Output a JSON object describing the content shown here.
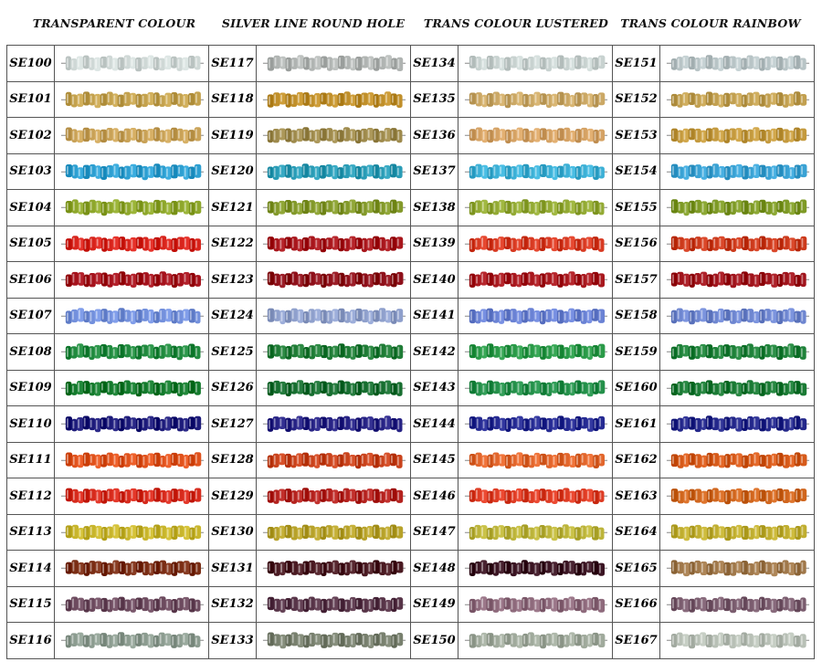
{
  "columns": [
    {
      "title": "TRANSPARENT COLOUR",
      "items": [
        {
          "code": "SE100",
          "color": "#cfd8d6"
        },
        {
          "code": "SE101",
          "color": "#c4a24e"
        },
        {
          "code": "SE102",
          "color": "#c9a257"
        },
        {
          "code": "SE103",
          "color": "#2d9fd1"
        },
        {
          "code": "SE104",
          "color": "#8ea72b"
        },
        {
          "code": "SE105",
          "color": "#d8241c"
        },
        {
          "code": "SE106",
          "color": "#a5121c"
        },
        {
          "code": "SE107",
          "color": "#7390dc"
        },
        {
          "code": "SE108",
          "color": "#208a3e"
        },
        {
          "code": "SE109",
          "color": "#137a2c"
        },
        {
          "code": "SE110",
          "color": "#1d1b7a"
        },
        {
          "code": "SE111",
          "color": "#e0521c"
        },
        {
          "code": "SE112",
          "color": "#d62a1c"
        },
        {
          "code": "SE113",
          "color": "#c8b52c"
        },
        {
          "code": "SE114",
          "color": "#7a2d14"
        },
        {
          "code": "SE115",
          "color": "#6c4a5e"
        },
        {
          "code": "SE116",
          "color": "#8c9c90"
        }
      ]
    },
    {
      "title": "SILVER LINE ROUND HOLE",
      "items": [
        {
          "code": "SE117",
          "color": "#b0b4b2"
        },
        {
          "code": "SE118",
          "color": "#c08f2a"
        },
        {
          "code": "SE119",
          "color": "#9e8a4c"
        },
        {
          "code": "SE120",
          "color": "#2a9cb6"
        },
        {
          "code": "SE121",
          "color": "#83992a"
        },
        {
          "code": "SE122",
          "color": "#a8161c"
        },
        {
          "code": "SE123",
          "color": "#8e101a"
        },
        {
          "code": "SE124",
          "color": "#8fa0cc"
        },
        {
          "code": "SE125",
          "color": "#1f7c36"
        },
        {
          "code": "SE126",
          "color": "#176e30"
        },
        {
          "code": "SE127",
          "color": "#262284"
        },
        {
          "code": "SE128",
          "color": "#c9431c"
        },
        {
          "code": "SE129",
          "color": "#b4221e"
        },
        {
          "code": "SE130",
          "color": "#b7a22a"
        },
        {
          "code": "SE131",
          "color": "#4a1a22"
        },
        {
          "code": "SE132",
          "color": "#573448"
        },
        {
          "code": "SE133",
          "color": "#78806e"
        }
      ]
    },
    {
      "title": "TRANS COLOUR LUSTERED",
      "items": [
        {
          "code": "SE134",
          "color": "#c8d2d0"
        },
        {
          "code": "SE135",
          "color": "#cba865"
        },
        {
          "code": "SE136",
          "color": "#d5a264"
        },
        {
          "code": "SE137",
          "color": "#3cb0d6"
        },
        {
          "code": "SE138",
          "color": "#93aa34"
        },
        {
          "code": "SE139",
          "color": "#d83a22"
        },
        {
          "code": "SE140",
          "color": "#a8181e"
        },
        {
          "code": "SE141",
          "color": "#6a82d4"
        },
        {
          "code": "SE142",
          "color": "#2a9a48"
        },
        {
          "code": "SE143",
          "color": "#24904a"
        },
        {
          "code": "SE144",
          "color": "#252a92"
        },
        {
          "code": "SE145",
          "color": "#e2662c"
        },
        {
          "code": "SE146",
          "color": "#de3c24"
        },
        {
          "code": "SE147",
          "color": "#bcb43a"
        },
        {
          "code": "SE148",
          "color": "#3a1422"
        },
        {
          "code": "SE149",
          "color": "#8e6a7c"
        },
        {
          "code": "SE150",
          "color": "#a0aa9c"
        }
      ]
    },
    {
      "title": "TRANS COLOUR RAINBOW",
      "items": [
        {
          "code": "SE151",
          "color": "#b8c4c6"
        },
        {
          "code": "SE152",
          "color": "#c2a050"
        },
        {
          "code": "SE153",
          "color": "#c49a3e"
        },
        {
          "code": "SE154",
          "color": "#3aa2d4"
        },
        {
          "code": "SE155",
          "color": "#7e9a26"
        },
        {
          "code": "SE156",
          "color": "#cc3a1c"
        },
        {
          "code": "SE157",
          "color": "#a0141c"
        },
        {
          "code": "SE158",
          "color": "#6e86d0"
        },
        {
          "code": "SE159",
          "color": "#1f823a"
        },
        {
          "code": "SE160",
          "color": "#1a7a34"
        },
        {
          "code": "SE161",
          "color": "#23278a"
        },
        {
          "code": "SE162",
          "color": "#d65a1a"
        },
        {
          "code": "SE163",
          "color": "#d0661e"
        },
        {
          "code": "SE164",
          "color": "#c0ae30"
        },
        {
          "code": "SE165",
          "color": "#a0784a"
        },
        {
          "code": "SE166",
          "color": "#7a5c6e"
        },
        {
          "code": "SE167",
          "color": "#b8c0b6"
        }
      ]
    }
  ]
}
